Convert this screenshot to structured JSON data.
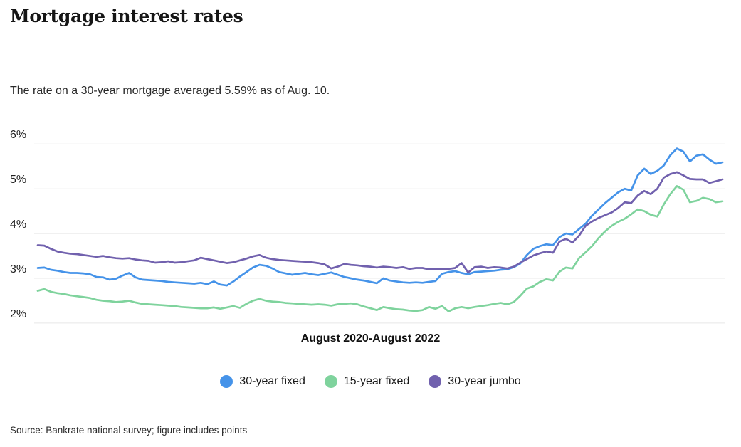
{
  "header": {
    "title": "Mortgage interest rates",
    "subtitle": "The rate on a 30-year mortgage averaged 5.59% as of Aug. 10."
  },
  "chart_data": {
    "type": "line",
    "title": "Mortgage interest rates",
    "xlabel": "August 2020-August 2022",
    "ylabel": "",
    "x": {
      "label": "August 2020-August 2022",
      "start": "August 2020",
      "end": "August 2022",
      "interval": "weekly"
    },
    "y": {
      "unit": "%",
      "ylim": [
        2,
        6
      ],
      "ticks": [
        {
          "value": 6,
          "label": "6%"
        },
        {
          "value": 5,
          "label": "5%"
        },
        {
          "value": 4,
          "label": "4%"
        },
        {
          "value": 3,
          "label": "3%"
        },
        {
          "value": 2,
          "label": "2%"
        }
      ]
    },
    "grid": true,
    "legend_position": "bottom",
    "colors": {
      "accent_blue": "#4593e9",
      "accent_green": "#7fd39d",
      "accent_purple": "#7161ae",
      "gridline": "#e8e8e8"
    },
    "series": [
      {
        "name": "30-year fixed",
        "color": "#4593e9",
        "values": [
          3.23,
          3.24,
          3.19,
          3.17,
          3.14,
          3.12,
          3.12,
          3.11,
          3.09,
          3.03,
          3.02,
          2.97,
          2.99,
          3.06,
          3.12,
          3.02,
          2.97,
          2.96,
          2.95,
          2.94,
          2.92,
          2.91,
          2.9,
          2.89,
          2.88,
          2.9,
          2.87,
          2.93,
          2.86,
          2.84,
          2.93,
          3.04,
          3.14,
          3.24,
          3.3,
          3.28,
          3.22,
          3.14,
          3.11,
          3.08,
          3.1,
          3.12,
          3.09,
          3.07,
          3.1,
          3.13,
          3.08,
          3.03,
          3.0,
          2.97,
          2.95,
          2.92,
          2.89,
          3.0,
          2.95,
          2.93,
          2.91,
          2.9,
          2.91,
          2.9,
          2.92,
          2.94,
          3.1,
          3.14,
          3.16,
          3.12,
          3.09,
          3.14,
          3.15,
          3.16,
          3.17,
          3.19,
          3.2,
          3.25,
          3.33,
          3.52,
          3.66,
          3.72,
          3.76,
          3.74,
          3.92,
          4.0,
          3.98,
          4.1,
          4.22,
          4.4,
          4.54,
          4.68,
          4.8,
          4.92,
          5.0,
          4.96,
          5.3,
          5.45,
          5.33,
          5.4,
          5.52,
          5.75,
          5.9,
          5.83,
          5.61,
          5.74,
          5.77,
          5.65,
          5.56,
          5.59
        ]
      },
      {
        "name": "15-year fixed",
        "color": "#7fd39d",
        "values": [
          2.72,
          2.76,
          2.7,
          2.67,
          2.65,
          2.62,
          2.6,
          2.58,
          2.56,
          2.52,
          2.5,
          2.49,
          2.47,
          2.48,
          2.5,
          2.46,
          2.43,
          2.42,
          2.41,
          2.4,
          2.39,
          2.38,
          2.36,
          2.35,
          2.34,
          2.33,
          2.33,
          2.35,
          2.32,
          2.35,
          2.38,
          2.34,
          2.43,
          2.5,
          2.54,
          2.5,
          2.48,
          2.47,
          2.45,
          2.44,
          2.43,
          2.42,
          2.41,
          2.42,
          2.41,
          2.39,
          2.42,
          2.43,
          2.44,
          2.42,
          2.37,
          2.33,
          2.29,
          2.36,
          2.33,
          2.31,
          2.3,
          2.28,
          2.27,
          2.29,
          2.36,
          2.32,
          2.38,
          2.26,
          2.33,
          2.36,
          2.33,
          2.36,
          2.38,
          2.4,
          2.43,
          2.45,
          2.42,
          2.47,
          2.61,
          2.77,
          2.82,
          2.92,
          2.98,
          2.95,
          3.15,
          3.24,
          3.22,
          3.45,
          3.58,
          3.72,
          3.9,
          4.05,
          4.17,
          4.26,
          4.33,
          4.43,
          4.54,
          4.5,
          4.42,
          4.38,
          4.65,
          4.88,
          5.06,
          4.98,
          4.7,
          4.73,
          4.8,
          4.77,
          4.7,
          4.72
        ]
      },
      {
        "name": "30-year jumbo",
        "color": "#7161ae",
        "values": [
          3.74,
          3.73,
          3.66,
          3.6,
          3.57,
          3.55,
          3.54,
          3.52,
          3.5,
          3.48,
          3.5,
          3.47,
          3.45,
          3.44,
          3.45,
          3.42,
          3.4,
          3.39,
          3.35,
          3.36,
          3.38,
          3.35,
          3.36,
          3.38,
          3.4,
          3.46,
          3.43,
          3.4,
          3.37,
          3.34,
          3.36,
          3.4,
          3.44,
          3.49,
          3.52,
          3.46,
          3.43,
          3.41,
          3.4,
          3.39,
          3.38,
          3.37,
          3.36,
          3.34,
          3.31,
          3.22,
          3.26,
          3.32,
          3.3,
          3.29,
          3.27,
          3.26,
          3.24,
          3.26,
          3.25,
          3.23,
          3.25,
          3.21,
          3.23,
          3.23,
          3.2,
          3.21,
          3.2,
          3.21,
          3.23,
          3.34,
          3.13,
          3.25,
          3.26,
          3.23,
          3.25,
          3.24,
          3.22,
          3.26,
          3.35,
          3.43,
          3.51,
          3.56,
          3.6,
          3.57,
          3.82,
          3.88,
          3.8,
          3.95,
          4.17,
          4.27,
          4.35,
          4.41,
          4.47,
          4.57,
          4.7,
          4.68,
          4.85,
          4.95,
          4.88,
          5.0,
          5.25,
          5.33,
          5.37,
          5.3,
          5.22,
          5.21,
          5.21,
          5.13,
          5.17,
          5.21
        ]
      }
    ]
  },
  "footer": {
    "source": "Source: Bankrate national survey; figure includes points"
  }
}
